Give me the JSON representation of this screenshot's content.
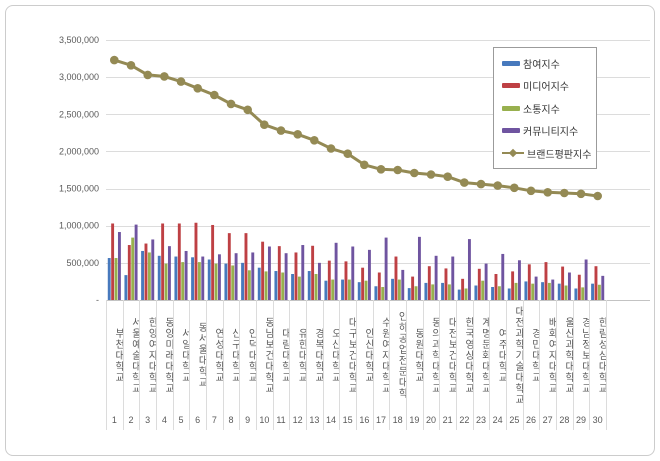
{
  "chart_data": {
    "type": "combo (bar + line)",
    "title": "",
    "xlabel": "",
    "ylabel": "",
    "ylim": [
      0,
      3500000
    ],
    "y_tick_step": 500000,
    "y_tick_labels": [
      "3,500,000",
      "3,000,000",
      "2,500,000",
      "2,000,000",
      "1,500,000",
      "1,000,000",
      "500,000",
      "-"
    ],
    "y_tick_values": [
      3500000,
      3000000,
      2500000,
      2000000,
      1500000,
      1000000,
      500000,
      0
    ],
    "grid": true,
    "legend_position": "top-right",
    "ranks": [
      "1",
      "2",
      "3",
      "4",
      "5",
      "6",
      "7",
      "8",
      "9",
      "10",
      "11",
      "12",
      "13",
      "14",
      "15",
      "16",
      "17",
      "18",
      "19",
      "20",
      "21",
      "22",
      "23",
      "24",
      "25",
      "26",
      "27",
      "28",
      "29",
      "30"
    ],
    "categories": [
      "부천대학교",
      "서울예술대학교",
      "한양여자대학교",
      "동양미래대학교",
      "서일대학교",
      "동서울대학교",
      "연성대학교",
      "신구대학교",
      "인덕대학교",
      "동남보건대학교",
      "대림대학교",
      "유한대학교",
      "경복대학교",
      "오산대학교",
      "대구보건대학교",
      "안산대학교",
      "수원여자대학교",
      "인하공업전문대학",
      "동원대학교",
      "동의과학대학교",
      "대전보건대학교",
      "한국영상대학교",
      "계명문화대학교",
      "여주대학교",
      "대전과학기술대학교",
      "경민대학교",
      "배화여자대학교",
      "울산과학대학교",
      "경남정보대학교",
      "한림성심대학교"
    ],
    "series": [
      {
        "name": "참여지수",
        "type": "bar",
        "color": "#4779BD",
        "values": [
          565000,
          335000,
          660000,
          595000,
          585000,
          575000,
          545000,
          490000,
          500000,
          435000,
          390000,
          350000,
          390000,
          260000,
          275000,
          240000,
          185000,
          285000,
          160000,
          230000,
          230000,
          140000,
          195000,
          175000,
          155000,
          250000,
          240000,
          220000,
          155000,
          220000
        ]
      },
      {
        "name": "미디어지수",
        "type": "bar",
        "color": "#BE4044",
        "values": [
          1030000,
          740000,
          760000,
          1030000,
          1030000,
          1040000,
          1010000,
          900000,
          900000,
          785000,
          725000,
          640000,
          730000,
          530000,
          520000,
          435000,
          370000,
          585000,
          315000,
          455000,
          425000,
          285000,
          420000,
          350000,
          385000,
          480000,
          510000,
          450000,
          340000,
          455000
        ]
      },
      {
        "name": "소통지수",
        "type": "bar",
        "color": "#98B04E",
        "values": [
          565000,
          840000,
          640000,
          490000,
          510000,
          510000,
          490000,
          465000,
          400000,
          385000,
          370000,
          315000,
          350000,
          275000,
          275000,
          260000,
          175000,
          275000,
          185000,
          210000,
          210000,
          155000,
          260000,
          185000,
          230000,
          220000,
          230000,
          195000,
          170000,
          205000
        ]
      },
      {
        "name": "커뮤니티지수",
        "type": "bar",
        "color": "#6F54A0",
        "values": [
          915000,
          1015000,
          815000,
          725000,
          660000,
          585000,
          615000,
          630000,
          640000,
          720000,
          630000,
          740000,
          500000,
          770000,
          720000,
          675000,
          840000,
          405000,
          850000,
          595000,
          585000,
          820000,
          490000,
          620000,
          535000,
          315000,
          275000,
          370000,
          545000,
          325000
        ]
      },
      {
        "name": "브랜드평판지수",
        "type": "line",
        "color": "#948A54",
        "values": [
          3230000,
          3160000,
          3030000,
          3010000,
          2940000,
          2850000,
          2760000,
          2640000,
          2560000,
          2360000,
          2280000,
          2230000,
          2150000,
          2040000,
          1970000,
          1820000,
          1760000,
          1750000,
          1710000,
          1690000,
          1660000,
          1580000,
          1560000,
          1540000,
          1510000,
          1470000,
          1450000,
          1440000,
          1430000,
          1400000
        ]
      }
    ],
    "colors": {
      "gridline": "#dcdcdc",
      "baseline": "#c3c3c3",
      "axis_text": "#595959",
      "legend_border": "#9b9b9b",
      "frame_border": "#cccccc"
    }
  }
}
